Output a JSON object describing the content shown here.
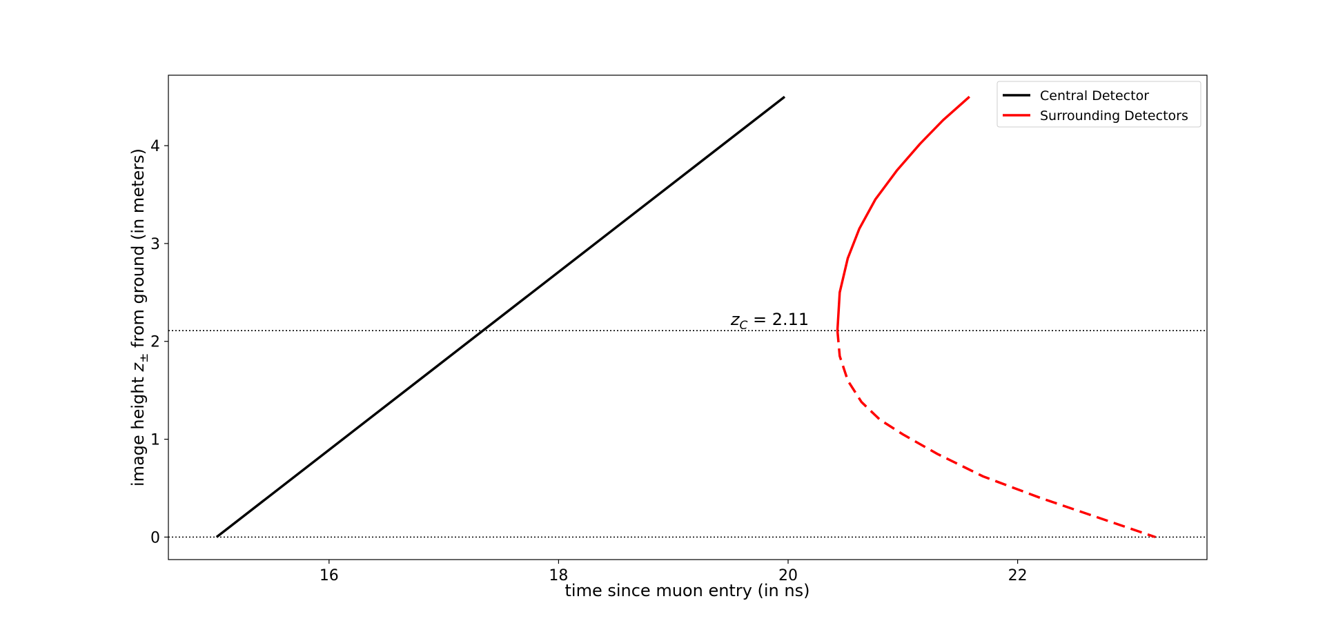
{
  "chart_data": {
    "type": "line",
    "xlabel": "time since muon entry (in ns)",
    "ylabel": {
      "before": "image height ",
      "var": "z",
      "sub": "±",
      "after": " from ground (in meters)"
    },
    "xlim": [
      14.6,
      23.65
    ],
    "ylim": [
      -0.23,
      4.72
    ],
    "xticks": [
      16,
      18,
      20,
      22
    ],
    "yticks": [
      0,
      1,
      2,
      3,
      4
    ],
    "grid": false,
    "legend": {
      "position": "top-right",
      "entries": [
        "Central Detector",
        "Surrounding Detectors"
      ]
    },
    "colors": {
      "central": "#000000",
      "surrounding": "#ff0000"
    },
    "reference_lines": [
      {
        "y": 2.11,
        "style": "dotted"
      },
      {
        "y": 0,
        "style": "dotted"
      }
    ],
    "annotation": {
      "var": "z",
      "sub": "C",
      "text": " = 2.11",
      "x": 19.5,
      "y": 2.11
    },
    "series": [
      {
        "name": "Central Detector",
        "color": "#000000",
        "style": "solid",
        "points": [
          [
            15.02,
            0
          ],
          [
            19.97,
            4.5
          ]
        ]
      },
      {
        "name": "Surrounding Detectors",
        "color": "#ff0000",
        "style": "solid",
        "points": [
          [
            20.43,
            2.11
          ],
          [
            20.45,
            2.5
          ],
          [
            20.52,
            2.85
          ],
          [
            20.62,
            3.15
          ],
          [
            20.76,
            3.45
          ],
          [
            20.95,
            3.75
          ],
          [
            21.15,
            4.02
          ],
          [
            21.35,
            4.26
          ],
          [
            21.58,
            4.5
          ]
        ]
      },
      {
        "name": "Surrounding Detectors",
        "color": "#ff0000",
        "style": "dashed",
        "points": [
          [
            20.43,
            2.11
          ],
          [
            20.45,
            1.85
          ],
          [
            20.52,
            1.6
          ],
          [
            20.64,
            1.38
          ],
          [
            20.8,
            1.2
          ],
          [
            21.0,
            1.05
          ],
          [
            21.3,
            0.85
          ],
          [
            21.7,
            0.62
          ],
          [
            22.2,
            0.4
          ],
          [
            22.7,
            0.2
          ],
          [
            23.2,
            0.0
          ]
        ]
      }
    ]
  }
}
